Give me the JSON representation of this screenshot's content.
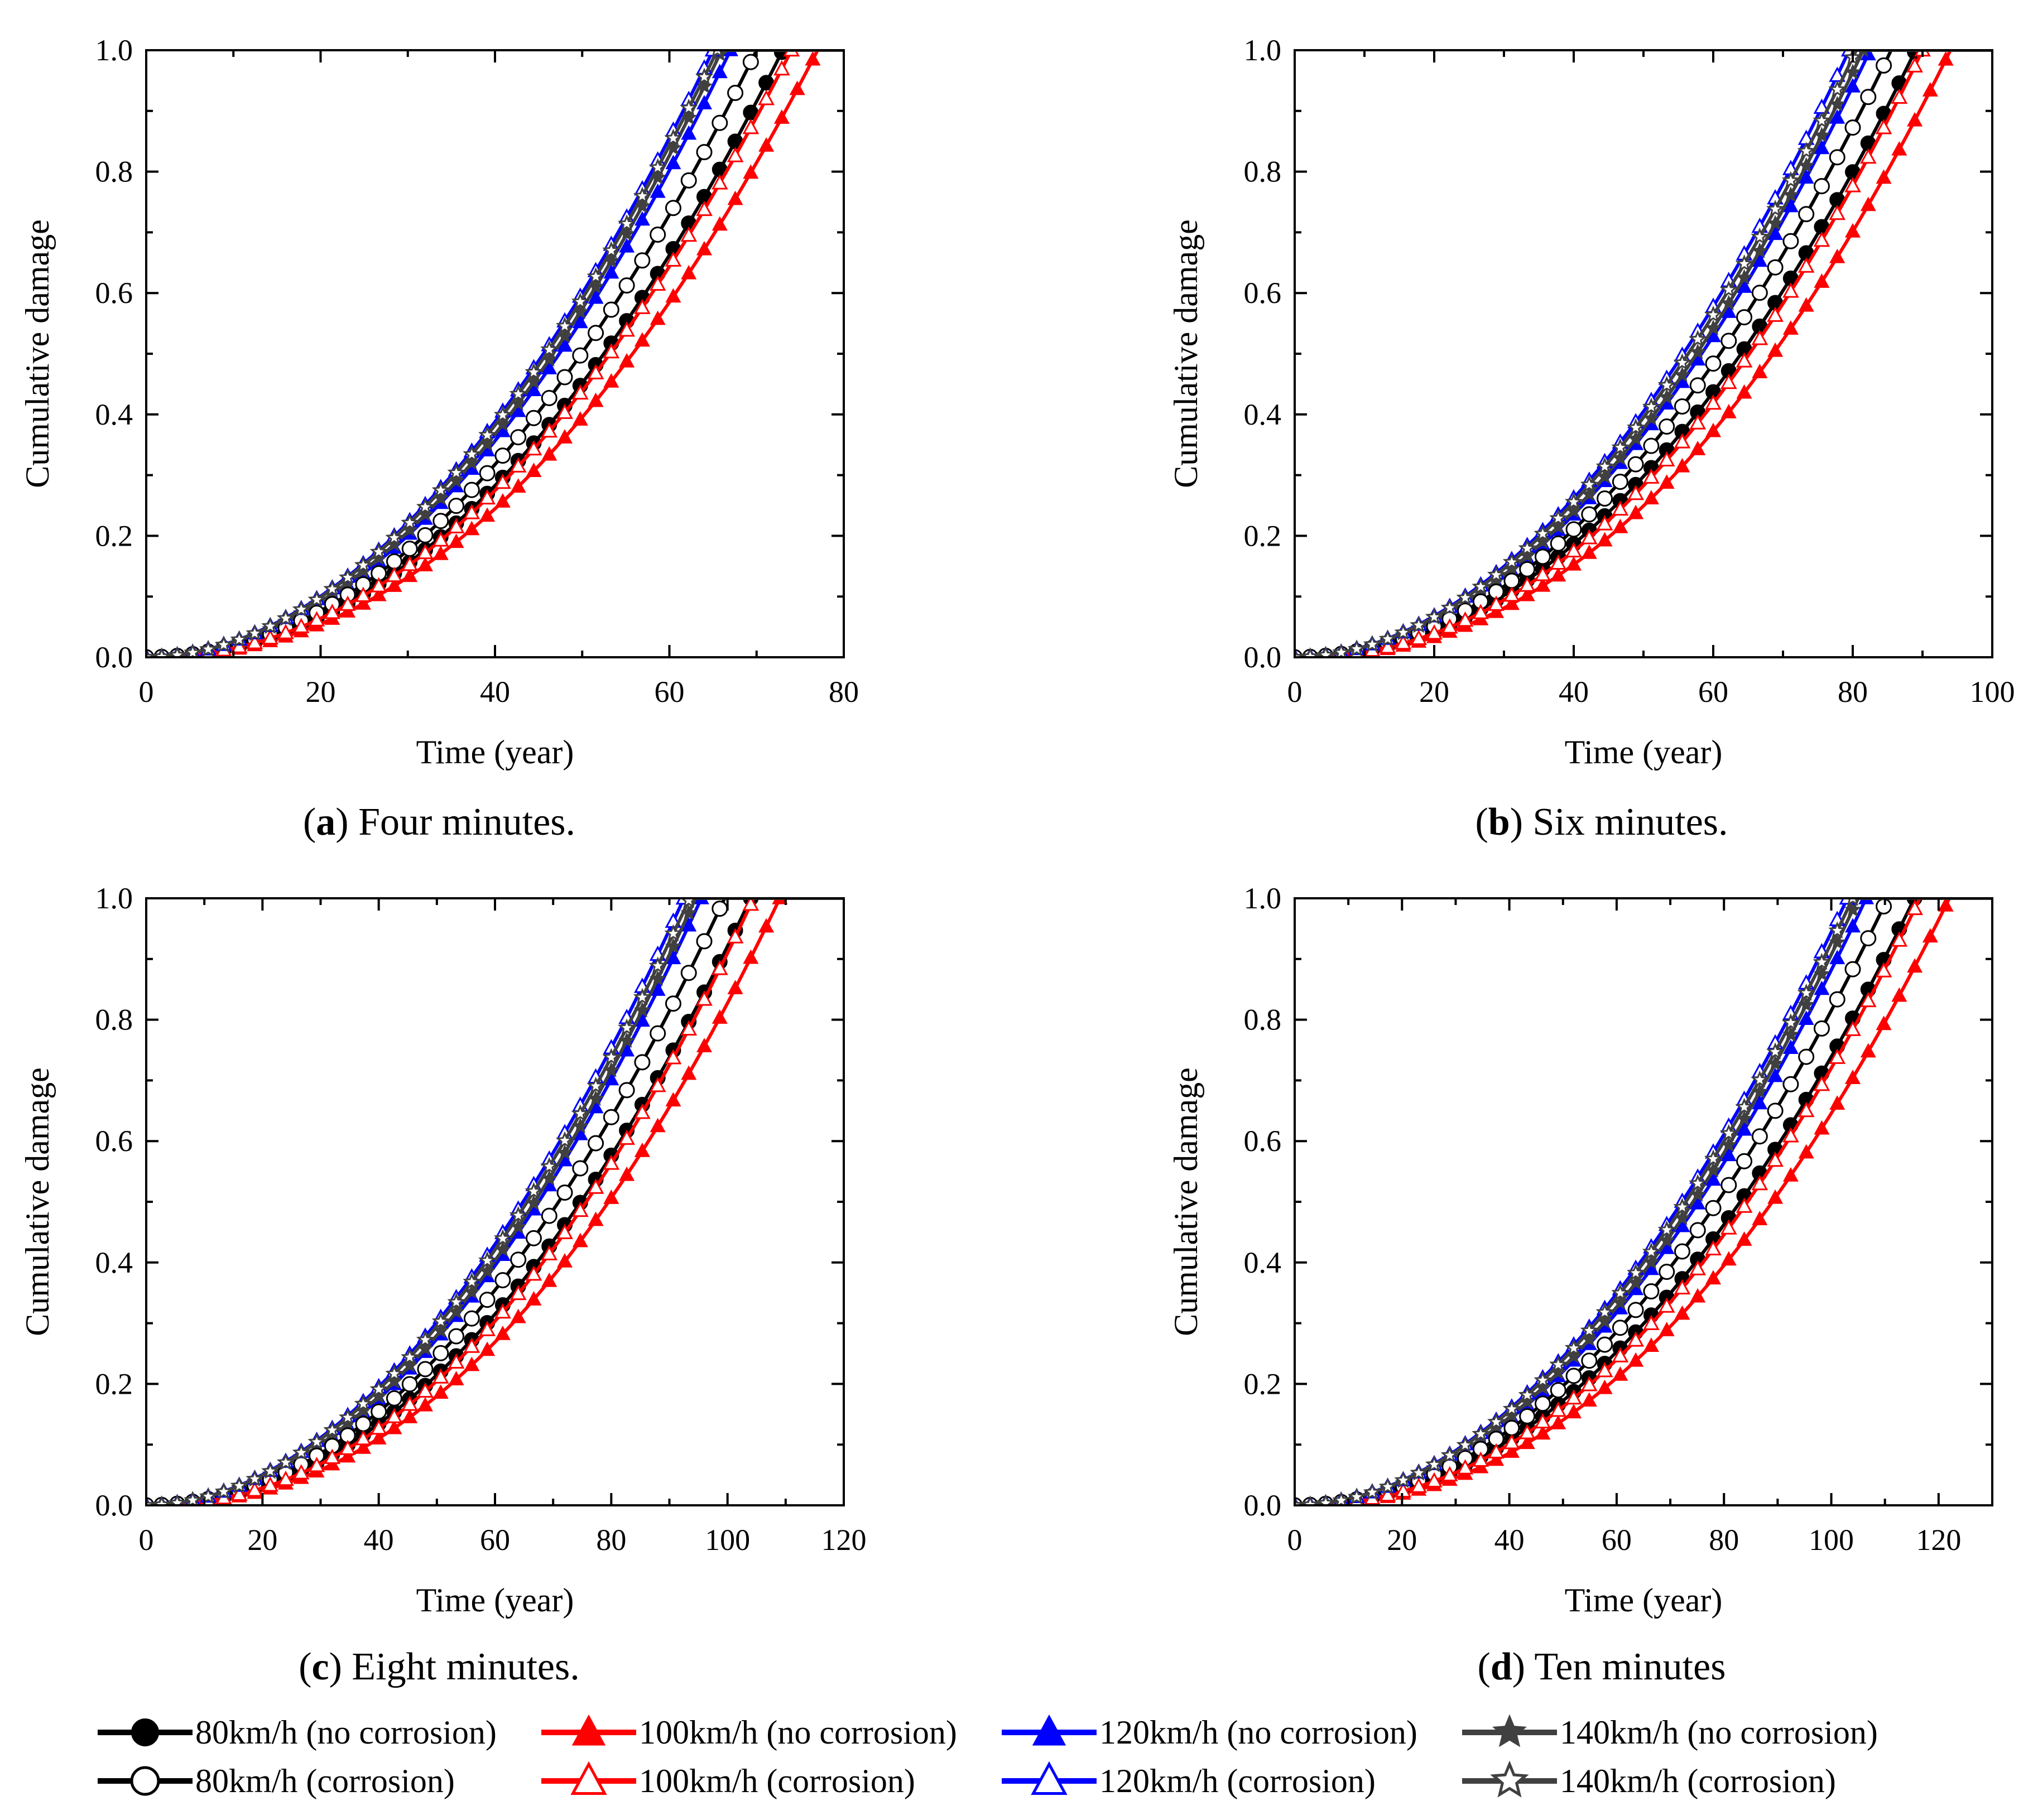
{
  "figure": {
    "legend": [
      {
        "label": "80km/h (no corrosion)",
        "color": "#000000",
        "marker": "circle",
        "filled": true
      },
      {
        "label": "100km/h (no corrosion)",
        "color": "#ff0000",
        "marker": "triangle",
        "filled": true
      },
      {
        "label": "120km/h (no corrosion)",
        "color": "#0000ff",
        "marker": "triangle",
        "filled": true
      },
      {
        "label": "140km/h (no corrosion)",
        "color": "#404040",
        "marker": "star",
        "filled": true
      },
      {
        "label": "80km/h (corrosion)",
        "color": "#000000",
        "marker": "circle",
        "filled": false
      },
      {
        "label": "100km/h (corrosion)",
        "color": "#ff0000",
        "marker": "triangle",
        "filled": false
      },
      {
        "label": "120km/h (corrosion)",
        "color": "#0000ff",
        "marker": "triangle",
        "filled": false
      },
      {
        "label": "140km/h (corrosion)",
        "color": "#404040",
        "marker": "star",
        "filled": false
      }
    ]
  },
  "chart_data": [
    {
      "type": "line",
      "caption_letter": "a",
      "caption_text": " Four minutes.",
      "xlabel": "Time (year)",
      "ylabel": "Cumulative damage",
      "xlim": [
        0,
        80
      ],
      "ylim": [
        0,
        1.0
      ],
      "xticks": [
        0,
        20,
        40,
        60,
        80
      ],
      "yticks": [
        0.0,
        0.2,
        0.4,
        0.6,
        0.8,
        1.0
      ],
      "series": [
        {
          "name": "80km/h (no corrosion)",
          "end_x": 73,
          "k": 2.1
        },
        {
          "name": "100km/h (no corrosion)",
          "end_x": 77,
          "k": 2.15
        },
        {
          "name": "120km/h (no corrosion)",
          "end_x": 67,
          "k": 2.0
        },
        {
          "name": "140km/h (no corrosion)",
          "end_x": 66,
          "k": 2.0
        },
        {
          "name": "80km/h (corrosion)",
          "end_x": 70,
          "k": 2.05
        },
        {
          "name": "100km/h (corrosion)",
          "end_x": 74,
          "k": 2.1
        },
        {
          "name": "120km/h (corrosion)",
          "end_x": 65,
          "k": 1.95
        },
        {
          "name": "140km/h (corrosion)",
          "end_x": 65.5,
          "k": 1.95
        }
      ]
    },
    {
      "type": "line",
      "caption_letter": "b",
      "caption_text": " Six minutes.",
      "xlabel": "Time (year)",
      "ylabel": "Cumulative damage",
      "xlim": [
        0,
        100
      ],
      "ylim": [
        0,
        1.0
      ],
      "xticks": [
        0,
        20,
        40,
        60,
        80,
        100
      ],
      "yticks": [
        0.0,
        0.2,
        0.4,
        0.6,
        0.8,
        1.0
      ],
      "series": [
        {
          "name": "80km/h (no corrosion)",
          "end_x": 89,
          "k": 2.1
        },
        {
          "name": "100km/h (no corrosion)",
          "end_x": 94,
          "k": 2.2
        },
        {
          "name": "120km/h (no corrosion)",
          "end_x": 82.5,
          "k": 2.0
        },
        {
          "name": "140km/h (no corrosion)",
          "end_x": 81.5,
          "k": 2.0
        },
        {
          "name": "80km/h (corrosion)",
          "end_x": 85.5,
          "k": 2.05
        },
        {
          "name": "100km/h (corrosion)",
          "end_x": 90,
          "k": 2.15
        },
        {
          "name": "120km/h (corrosion)",
          "end_x": 79.5,
          "k": 1.95
        },
        {
          "name": "140km/h (corrosion)",
          "end_x": 80.5,
          "k": 1.95
        }
      ]
    },
    {
      "type": "line",
      "caption_letter": "c",
      "caption_text": " Eight minutes.",
      "xlabel": "Time (year)",
      "ylabel": "Cumulative damage",
      "xlim": [
        0,
        120
      ],
      "ylim": [
        0,
        1.0
      ],
      "xticks": [
        0,
        20,
        40,
        60,
        80,
        100,
        120
      ],
      "yticks": [
        0.0,
        0.2,
        0.4,
        0.6,
        0.8,
        1.0
      ],
      "series": [
        {
          "name": "80km/h (no corrosion)",
          "end_x": 104,
          "k": 2.1
        },
        {
          "name": "100km/h (no corrosion)",
          "end_x": 109,
          "k": 2.2
        },
        {
          "name": "120km/h (no corrosion)",
          "end_x": 95.5,
          "k": 2.0
        },
        {
          "name": "140km/h (no corrosion)",
          "end_x": 94.5,
          "k": 2.0
        },
        {
          "name": "80km/h (corrosion)",
          "end_x": 99.5,
          "k": 2.05
        },
        {
          "name": "100km/h (corrosion)",
          "end_x": 104.5,
          "k": 2.15
        },
        {
          "name": "120km/h (corrosion)",
          "end_x": 92.5,
          "k": 1.95
        },
        {
          "name": "140km/h (corrosion)",
          "end_x": 93.5,
          "k": 1.95
        }
      ]
    },
    {
      "type": "line",
      "caption_letter": "d",
      "caption_text": " Ten minutes",
      "xlabel": "Time (year)",
      "ylabel": "Cumulative damage",
      "xlim": [
        0,
        130
      ],
      "ylim": [
        0,
        1.0
      ],
      "xticks": [
        0,
        20,
        40,
        60,
        80,
        100,
        120
      ],
      "yticks": [
        0.0,
        0.2,
        0.4,
        0.6,
        0.8,
        1.0
      ],
      "series": [
        {
          "name": "80km/h (no corrosion)",
          "end_x": 115.5,
          "k": 2.1
        },
        {
          "name": "100km/h (no corrosion)",
          "end_x": 122,
          "k": 2.2
        },
        {
          "name": "120km/h (no corrosion)",
          "end_x": 106.5,
          "k": 2.0
        },
        {
          "name": "140km/h (no corrosion)",
          "end_x": 105,
          "k": 2.0
        },
        {
          "name": "80km/h (corrosion)",
          "end_x": 110.5,
          "k": 2.05
        },
        {
          "name": "100km/h (corrosion)",
          "end_x": 116.5,
          "k": 2.15
        },
        {
          "name": "120km/h (corrosion)",
          "end_x": 103,
          "k": 1.95
        },
        {
          "name": "140km/h (corrosion)",
          "end_x": 104,
          "k": 1.95
        }
      ]
    }
  ]
}
